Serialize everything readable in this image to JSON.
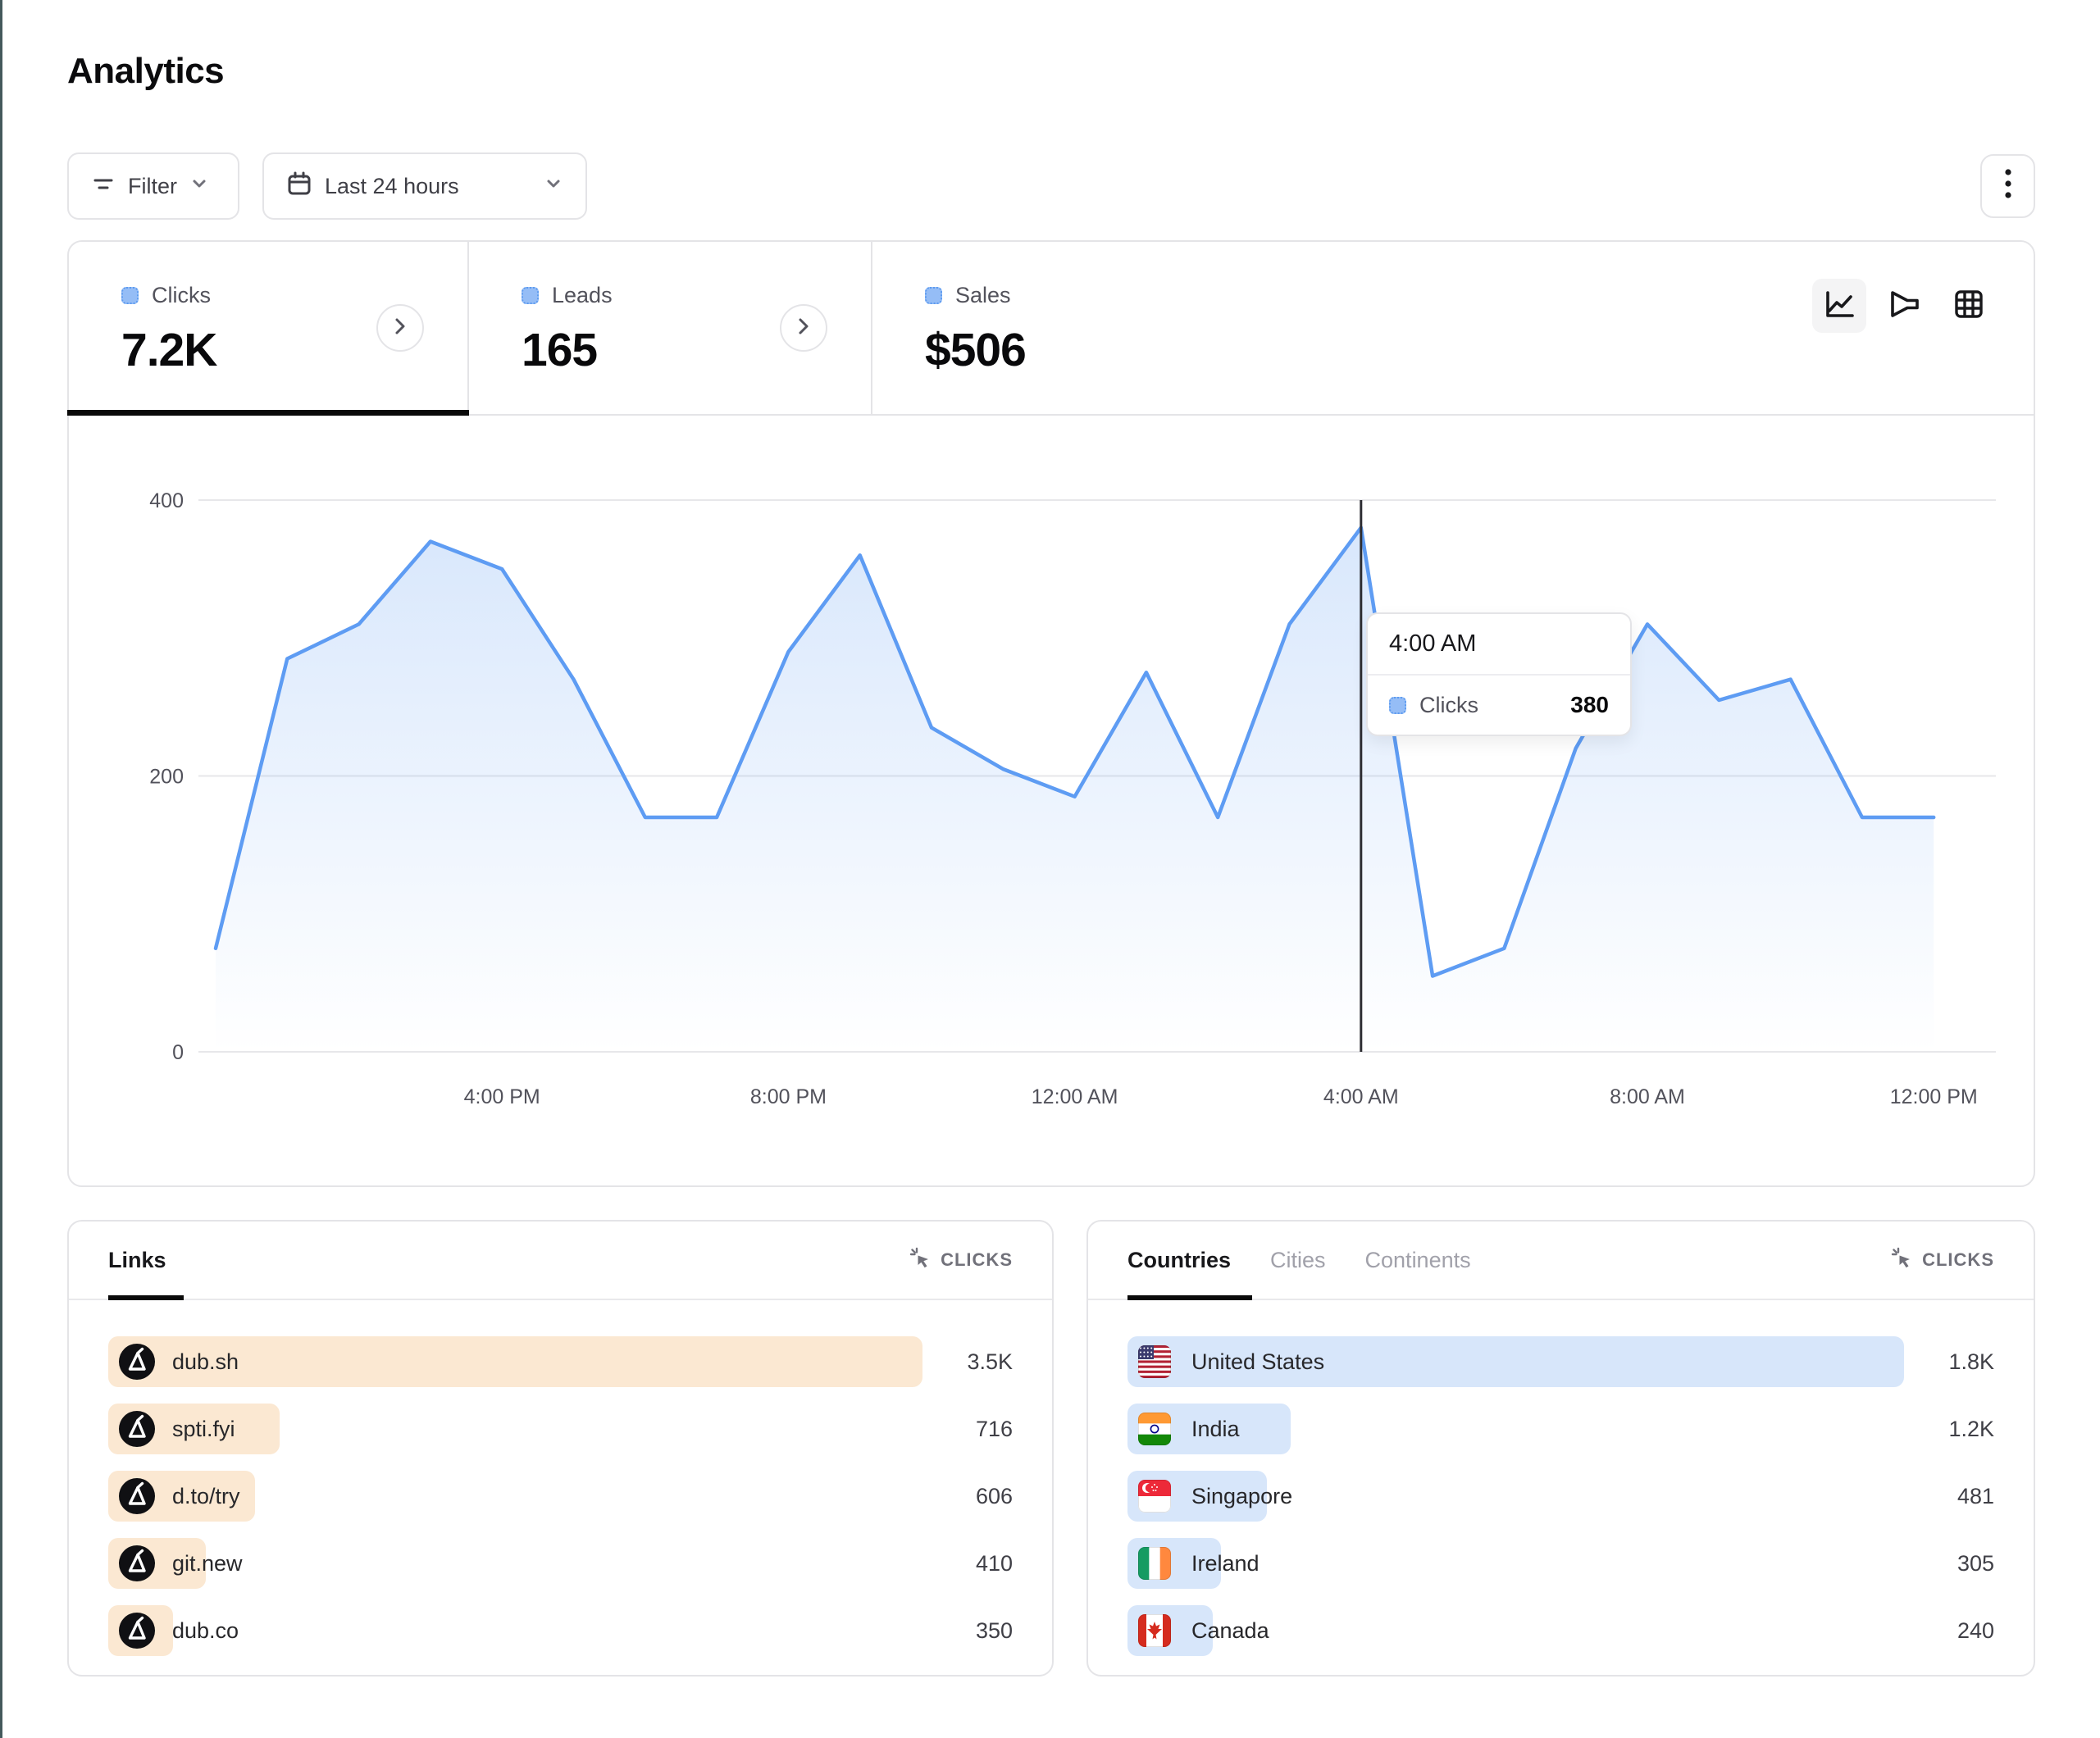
{
  "page": {
    "title": "Analytics"
  },
  "toolbar": {
    "filter_label": "Filter",
    "date_range_label": "Last 24 hours"
  },
  "icons": {
    "filter": "filter-lines-icon",
    "calendar": "calendar-icon",
    "chevron_down": "chevron-down-icon",
    "chevron_right": "chevron-right-icon",
    "kebab": "vertical-ellipsis-icon",
    "line_chart_view": "line-chart-icon",
    "funnel_view": "funnel-icon",
    "table_view": "grid-table-icon",
    "metric": "cursor-click-icon",
    "link_favicon": "dub-logo-icon"
  },
  "stats": [
    {
      "label": "Clicks",
      "value": "7.2K",
      "active": true
    },
    {
      "label": "Leads",
      "value": "165",
      "active": false
    },
    {
      "label": "Sales",
      "value": "$506",
      "active": false
    }
  ],
  "chart_data": {
    "type": "area",
    "title": "Clicks over the last 24 hours",
    "x_start": "12:00 PM",
    "x_interval_hours": 1,
    "series": [
      {
        "name": "Clicks",
        "color": "#5e9cf3",
        "values": [
          75,
          285,
          310,
          370,
          350,
          270,
          170,
          170,
          290,
          360,
          235,
          205,
          185,
          275,
          170,
          310,
          380,
          55,
          75,
          220,
          310,
          255,
          270,
          170,
          170
        ]
      }
    ],
    "x_tick_labels": [
      "4:00 PM",
      "8:00 PM",
      "12:00 AM",
      "4:00 AM",
      "8:00 AM",
      "12:00 PM"
    ],
    "x_tick_positions": [
      4,
      8,
      12,
      16,
      20,
      24
    ],
    "ylim": [
      0,
      400
    ],
    "yticks": [
      0,
      200,
      400
    ],
    "grid": "horizontal",
    "legend_position": "none",
    "crosshair": {
      "index": 16,
      "label": "4:00 AM"
    },
    "tooltip": {
      "title": "4:00 AM",
      "series_label": "Clicks",
      "value": "380"
    }
  },
  "links_panel": {
    "tab_label": "Links",
    "metric_label": "CLICKS",
    "rows": [
      {
        "label": "dub.sh",
        "value": "3.5K",
        "bar_pct": 100
      },
      {
        "label": "spti.fyi",
        "value": "716",
        "bar_pct": 21
      },
      {
        "label": "d.to/try",
        "value": "606",
        "bar_pct": 18
      },
      {
        "label": "git.new",
        "value": "410",
        "bar_pct": 12
      },
      {
        "label": "dub.co",
        "value": "350",
        "bar_pct": 8
      }
    ]
  },
  "geo_panel": {
    "tabs": [
      "Countries",
      "Cities",
      "Continents"
    ],
    "active_tab": "Countries",
    "metric_label": "CLICKS",
    "rows": [
      {
        "label": "United States",
        "value": "1.8K",
        "bar_pct": 100,
        "flag": "us"
      },
      {
        "label": "India",
        "value": "1.2K",
        "bar_pct": 21,
        "flag": "in"
      },
      {
        "label": "Singapore",
        "value": "481",
        "bar_pct": 18,
        "flag": "sg"
      },
      {
        "label": "Ireland",
        "value": "305",
        "bar_pct": 12,
        "flag": "ie"
      },
      {
        "label": "Canada",
        "value": "240",
        "bar_pct": 11,
        "flag": "ca"
      }
    ]
  },
  "colors": {
    "accent_edge": "#44595c",
    "line": "#5e9cf3",
    "links_bar": "#fbe8d2",
    "geo_bar": "#d7e6fa",
    "border": "#e4e4e7"
  }
}
